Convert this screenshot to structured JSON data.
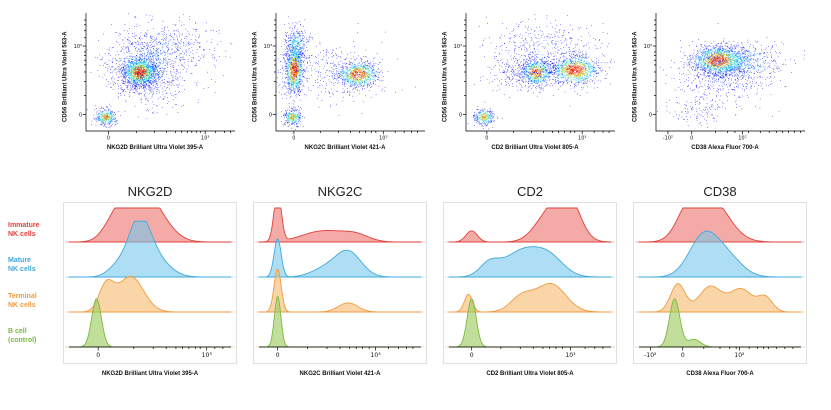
{
  "legend": {
    "rows": [
      {
        "line1": "Immature",
        "line2": "NK cells",
        "color": "#e2403a"
      },
      {
        "line1": "Mature",
        "line2": "NK cells",
        "color": "#3fa9dc"
      },
      {
        "line1": "Terminal",
        "line2": "NK cells",
        "color": "#f19a3e"
      },
      {
        "line1": "B cell",
        "line2": "(control)",
        "color": "#7cb942"
      }
    ]
  },
  "colors": {
    "immature": "#e2403a",
    "mature": "#3fa9dc",
    "terminal": "#f19a3e",
    "bcell": "#7cb942"
  },
  "chart_data": {
    "scatter_plots": [
      {
        "type": "scatter",
        "xlabel": "NKG2D Brilliant Ultra Violet 395-A",
        "ylabel": "CD56 Brilliant Ultra Violet 563-A",
        "seed": 11,
        "x_ticks": [
          {
            "pos": 0.15,
            "label": "0"
          },
          {
            "pos": 0.8,
            "label": "10³"
          }
        ],
        "x_minor": [
          0.34,
          0.46,
          0.54,
          0.6,
          0.64,
          0.68,
          0.71,
          0.74,
          0.77,
          0.87,
          0.93,
          0.97
        ],
        "y_ticks": [
          {
            "pos": 0.14,
            "label": "0"
          },
          {
            "pos": 0.72,
            "label": "10³"
          }
        ],
        "y_minor": [
          0.3,
          0.42,
          0.5,
          0.56,
          0.6,
          0.64,
          0.67,
          0.79,
          0.85,
          0.9,
          0.94
        ],
        "clusters": [
          {
            "cx": 0.36,
            "cy": 0.5,
            "sx": 0.055,
            "sy": 0.06,
            "n": 1400,
            "peak": 1.0
          },
          {
            "cx": 0.38,
            "cy": 0.55,
            "sx": 0.13,
            "sy": 0.13,
            "n": 700,
            "peak": 0.4
          },
          {
            "cx": 0.13,
            "cy": 0.12,
            "sx": 0.035,
            "sy": 0.035,
            "n": 350,
            "peak": 0.8
          },
          {
            "cx": 0.55,
            "cy": 0.72,
            "sx": 0.18,
            "sy": 0.13,
            "n": 450,
            "peak": 0.22
          },
          {
            "cx": 0.45,
            "cy": 0.35,
            "sx": 0.15,
            "sy": 0.1,
            "n": 150,
            "peak": 0.15
          }
        ]
      },
      {
        "type": "scatter",
        "xlabel": "NKG2C Brilliant Violet 421-A",
        "ylabel": "CD56 Brilliant Ultra Violet 563-A",
        "seed": 22,
        "x_ticks": [
          {
            "pos": 0.12,
            "label": "0"
          },
          {
            "pos": 0.72,
            "label": "10³"
          }
        ],
        "x_minor": [
          0.3,
          0.42,
          0.5,
          0.56,
          0.6,
          0.64,
          0.67,
          0.8,
          0.86,
          0.91,
          0.95
        ],
        "y_ticks": [
          {
            "pos": 0.14,
            "label": "0"
          },
          {
            "pos": 0.72,
            "label": "10³"
          }
        ],
        "y_minor": [
          0.3,
          0.42,
          0.5,
          0.56,
          0.6,
          0.64,
          0.67,
          0.79,
          0.85,
          0.9,
          0.94
        ],
        "clusters": [
          {
            "cx": 0.12,
            "cy": 0.52,
            "sx": 0.03,
            "sy": 0.1,
            "n": 1000,
            "peak": 1.0
          },
          {
            "cx": 0.13,
            "cy": 0.72,
            "sx": 0.04,
            "sy": 0.09,
            "n": 350,
            "peak": 0.45
          },
          {
            "cx": 0.55,
            "cy": 0.48,
            "sx": 0.07,
            "sy": 0.055,
            "n": 800,
            "peak": 0.95
          },
          {
            "cx": 0.11,
            "cy": 0.12,
            "sx": 0.03,
            "sy": 0.035,
            "n": 300,
            "peak": 0.75
          },
          {
            "cx": 0.35,
            "cy": 0.52,
            "sx": 0.18,
            "sy": 0.13,
            "n": 350,
            "peak": 0.2
          }
        ]
      },
      {
        "type": "scatter",
        "xlabel": "CD2 Brilliant Ultra Violet 805-A",
        "ylabel": "CD56 Brilliant Ultra Violet 563-A",
        "seed": 33,
        "x_ticks": [
          {
            "pos": 0.14,
            "label": "0"
          },
          {
            "pos": 0.78,
            "label": "10³"
          }
        ],
        "x_minor": [
          0.32,
          0.44,
          0.52,
          0.58,
          0.62,
          0.66,
          0.7,
          0.73,
          0.86,
          0.92,
          0.96
        ],
        "y_ticks": [
          {
            "pos": 0.14,
            "label": "0"
          },
          {
            "pos": 0.72,
            "label": "10³"
          }
        ],
        "y_minor": [
          0.3,
          0.42,
          0.5,
          0.56,
          0.6,
          0.64,
          0.67,
          0.79,
          0.85,
          0.9,
          0.94
        ],
        "clusters": [
          {
            "cx": 0.47,
            "cy": 0.5,
            "sx": 0.055,
            "sy": 0.055,
            "n": 700,
            "peak": 0.9
          },
          {
            "cx": 0.73,
            "cy": 0.52,
            "sx": 0.08,
            "sy": 0.06,
            "n": 1000,
            "peak": 1.0
          },
          {
            "cx": 0.12,
            "cy": 0.12,
            "sx": 0.035,
            "sy": 0.035,
            "n": 300,
            "peak": 0.75
          },
          {
            "cx": 0.55,
            "cy": 0.68,
            "sx": 0.2,
            "sy": 0.14,
            "n": 500,
            "peak": 0.22
          },
          {
            "cx": 0.35,
            "cy": 0.5,
            "sx": 0.1,
            "sy": 0.08,
            "n": 200,
            "peak": 0.18
          }
        ]
      },
      {
        "type": "scatter",
        "xlabel": "CD38 Alexa Fluor 700-A",
        "ylabel": "CD56 Brilliant Ultra Violet 563-A",
        "seed": 44,
        "x_ticks": [
          {
            "pos": 0.08,
            "label": "-10²"
          },
          {
            "pos": 0.24,
            "label": "0"
          },
          {
            "pos": 0.58,
            "label": "10²"
          }
        ],
        "x_minor": [
          0.4,
          0.48,
          0.53,
          0.62,
          0.7,
          0.76,
          0.81,
          0.85,
          0.89,
          0.93,
          0.97
        ],
        "y_ticks": [
          {
            "pos": 0.14,
            "label": "0"
          },
          {
            "pos": 0.72,
            "label": "10³"
          }
        ],
        "y_minor": [
          0.3,
          0.42,
          0.5,
          0.56,
          0.6,
          0.64,
          0.67,
          0.79,
          0.85,
          0.9,
          0.94
        ],
        "clusters": [
          {
            "cx": 0.42,
            "cy": 0.6,
            "sx": 0.09,
            "sy": 0.06,
            "n": 1400,
            "peak": 1.0
          },
          {
            "cx": 0.55,
            "cy": 0.58,
            "sx": 0.16,
            "sy": 0.09,
            "n": 600,
            "peak": 0.4
          },
          {
            "cx": 0.45,
            "cy": 0.42,
            "sx": 0.16,
            "sy": 0.1,
            "n": 300,
            "peak": 0.18
          },
          {
            "cx": 0.3,
            "cy": 0.18,
            "sx": 0.1,
            "sy": 0.07,
            "n": 120,
            "peak": 0.12
          }
        ]
      }
    ],
    "histogram_panels": [
      {
        "type": "area",
        "title": "NKG2D",
        "xlabel": "NKG2D Brilliant Ultra Violet 395-A",
        "x_ticks": [
          {
            "pos": 0.18,
            "label": "0"
          },
          {
            "pos": 0.85,
            "label": "10³"
          }
        ],
        "x_minor": [
          0.4,
          0.52,
          0.6,
          0.66,
          0.7,
          0.74,
          0.78,
          0.81,
          0.9,
          0.95
        ],
        "series": [
          {
            "name": "Immature NK cells",
            "color": "#e2403a",
            "fill": "rgba(235,100,95,0.55)",
            "bumps": [
              {
                "c": 0.4,
                "w": 0.09,
                "h": 0.8
              },
              {
                "c": 0.52,
                "w": 0.1,
                "h": 0.55
              },
              {
                "c": 0.28,
                "w": 0.07,
                "h": 0.3
              }
            ]
          },
          {
            "name": "Mature NK cells",
            "color": "#3fa9dc",
            "fill": "rgba(120,200,235,0.60)",
            "bumps": [
              {
                "c": 0.43,
                "w": 0.065,
                "h": 0.95
              },
              {
                "c": 0.52,
                "w": 0.09,
                "h": 0.4
              },
              {
                "c": 0.3,
                "w": 0.06,
                "h": 0.2
              }
            ]
          },
          {
            "name": "Terminal NK cells",
            "color": "#f19a3e",
            "fill": "rgba(247,185,110,0.60)",
            "bumps": [
              {
                "c": 0.38,
                "w": 0.08,
                "h": 0.7
              },
              {
                "c": 0.23,
                "w": 0.045,
                "h": 0.5
              }
            ]
          },
          {
            "name": "B cell (control)",
            "color": "#7cb942",
            "fill": "rgba(160,205,100,0.65)",
            "bumps": [
              {
                "c": 0.17,
                "w": 0.03,
                "h": 0.95
              }
            ]
          }
        ]
      },
      {
        "type": "area",
        "title": "NKG2C",
        "xlabel": "NKG2C Brilliant Violet 421-A",
        "x_ticks": [
          {
            "pos": 0.115,
            "label": "0"
          },
          {
            "pos": 0.72,
            "label": "10³"
          }
        ],
        "x_minor": [
          0.3,
          0.42,
          0.5,
          0.56,
          0.6,
          0.64,
          0.68,
          0.8,
          0.86,
          0.91,
          0.95
        ],
        "series": [
          {
            "name": "Immature NK cells",
            "color": "#e2403a",
            "fill": "rgba(235,100,95,0.55)",
            "bumps": [
              {
                "c": 0.115,
                "w": 0.022,
                "h": 1.0
              },
              {
                "c": 0.4,
                "w": 0.13,
                "h": 0.22
              },
              {
                "c": 0.6,
                "w": 0.08,
                "h": 0.12
              }
            ]
          },
          {
            "name": "Mature NK cells",
            "color": "#3fa9dc",
            "fill": "rgba(120,200,235,0.60)",
            "bumps": [
              {
                "c": 0.115,
                "w": 0.022,
                "h": 0.75
              },
              {
                "c": 0.55,
                "w": 0.08,
                "h": 0.5
              },
              {
                "c": 0.4,
                "w": 0.08,
                "h": 0.15
              }
            ]
          },
          {
            "name": "Terminal NK cells",
            "color": "#f19a3e",
            "fill": "rgba(247,185,110,0.60)",
            "bumps": [
              {
                "c": 0.115,
                "w": 0.022,
                "h": 0.85
              },
              {
                "c": 0.55,
                "w": 0.06,
                "h": 0.18
              }
            ]
          },
          {
            "name": "B cell (control)",
            "color": "#7cb942",
            "fill": "rgba(160,205,100,0.65)",
            "bumps": [
              {
                "c": 0.115,
                "w": 0.02,
                "h": 1.0
              }
            ]
          }
        ]
      },
      {
        "type": "area",
        "title": "CD2",
        "xlabel": "CD2 Brilliant Ultra Violet 805-A",
        "x_ticks": [
          {
            "pos": 0.14,
            "label": "0"
          },
          {
            "pos": 0.75,
            "label": "10³"
          }
        ],
        "x_minor": [
          0.32,
          0.44,
          0.52,
          0.58,
          0.62,
          0.66,
          0.7,
          0.84,
          0.9,
          0.95
        ],
        "series": [
          {
            "name": "Immature NK cells",
            "color": "#e2403a",
            "fill": "rgba(235,100,95,0.55)",
            "bumps": [
              {
                "c": 0.73,
                "w": 0.075,
                "h": 0.9
              },
              {
                "c": 0.6,
                "w": 0.08,
                "h": 0.45
              },
              {
                "c": 0.14,
                "w": 0.035,
                "h": 0.22
              }
            ]
          },
          {
            "name": "Mature NK cells",
            "color": "#3fa9dc",
            "fill": "rgba(120,200,235,0.60)",
            "bumps": [
              {
                "c": 0.45,
                "w": 0.11,
                "h": 0.5
              },
              {
                "c": 0.62,
                "w": 0.09,
                "h": 0.35
              },
              {
                "c": 0.25,
                "w": 0.06,
                "h": 0.25
              }
            ]
          },
          {
            "name": "Terminal NK cells",
            "color": "#f19a3e",
            "fill": "rgba(247,185,110,0.60)",
            "bumps": [
              {
                "c": 0.63,
                "w": 0.09,
                "h": 0.55
              },
              {
                "c": 0.45,
                "w": 0.07,
                "h": 0.3
              },
              {
                "c": 0.12,
                "w": 0.025,
                "h": 0.35
              }
            ]
          },
          {
            "name": "B cell (control)",
            "color": "#7cb942",
            "fill": "rgba(160,205,100,0.65)",
            "bumps": [
              {
                "c": 0.14,
                "w": 0.028,
                "h": 0.95
              }
            ]
          }
        ]
      },
      {
        "type": "area",
        "title": "CD38",
        "xlabel": "CD38 Alexa Fluor 700-A",
        "x_ticks": [
          {
            "pos": 0.07,
            "label": "-10²"
          },
          {
            "pos": 0.27,
            "label": "0"
          },
          {
            "pos": 0.62,
            "label": "10²"
          }
        ],
        "x_minor": [
          0.4,
          0.5,
          0.56,
          0.6,
          0.68,
          0.73,
          0.77,
          0.8,
          0.85,
          0.9,
          0.95
        ],
        "series": [
          {
            "name": "Immature NK cells",
            "color": "#e2403a",
            "fill": "rgba(235,100,95,0.55)",
            "bumps": [
              {
                "c": 0.44,
                "w": 0.11,
                "h": 0.85
              },
              {
                "c": 0.3,
                "w": 0.07,
                "h": 0.45
              }
            ]
          },
          {
            "name": "Mature NK cells",
            "color": "#3fa9dc",
            "fill": "rgba(120,200,235,0.60)",
            "bumps": [
              {
                "c": 0.4,
                "w": 0.09,
                "h": 0.8
              },
              {
                "c": 0.55,
                "w": 0.09,
                "h": 0.35
              }
            ]
          },
          {
            "name": "Terminal NK cells",
            "color": "#f19a3e",
            "fill": "rgba(247,185,110,0.60)",
            "bumps": [
              {
                "c": 0.24,
                "w": 0.045,
                "h": 0.55
              },
              {
                "c": 0.44,
                "w": 0.07,
                "h": 0.5
              },
              {
                "c": 0.63,
                "w": 0.07,
                "h": 0.45
              },
              {
                "c": 0.78,
                "w": 0.045,
                "h": 0.28
              }
            ]
          },
          {
            "name": "B cell (control)",
            "color": "#7cb942",
            "fill": "rgba(160,205,100,0.65)",
            "bumps": [
              {
                "c": 0.22,
                "w": 0.032,
                "h": 0.95
              },
              {
                "c": 0.34,
                "w": 0.04,
                "h": 0.15
              }
            ]
          }
        ]
      }
    ]
  }
}
